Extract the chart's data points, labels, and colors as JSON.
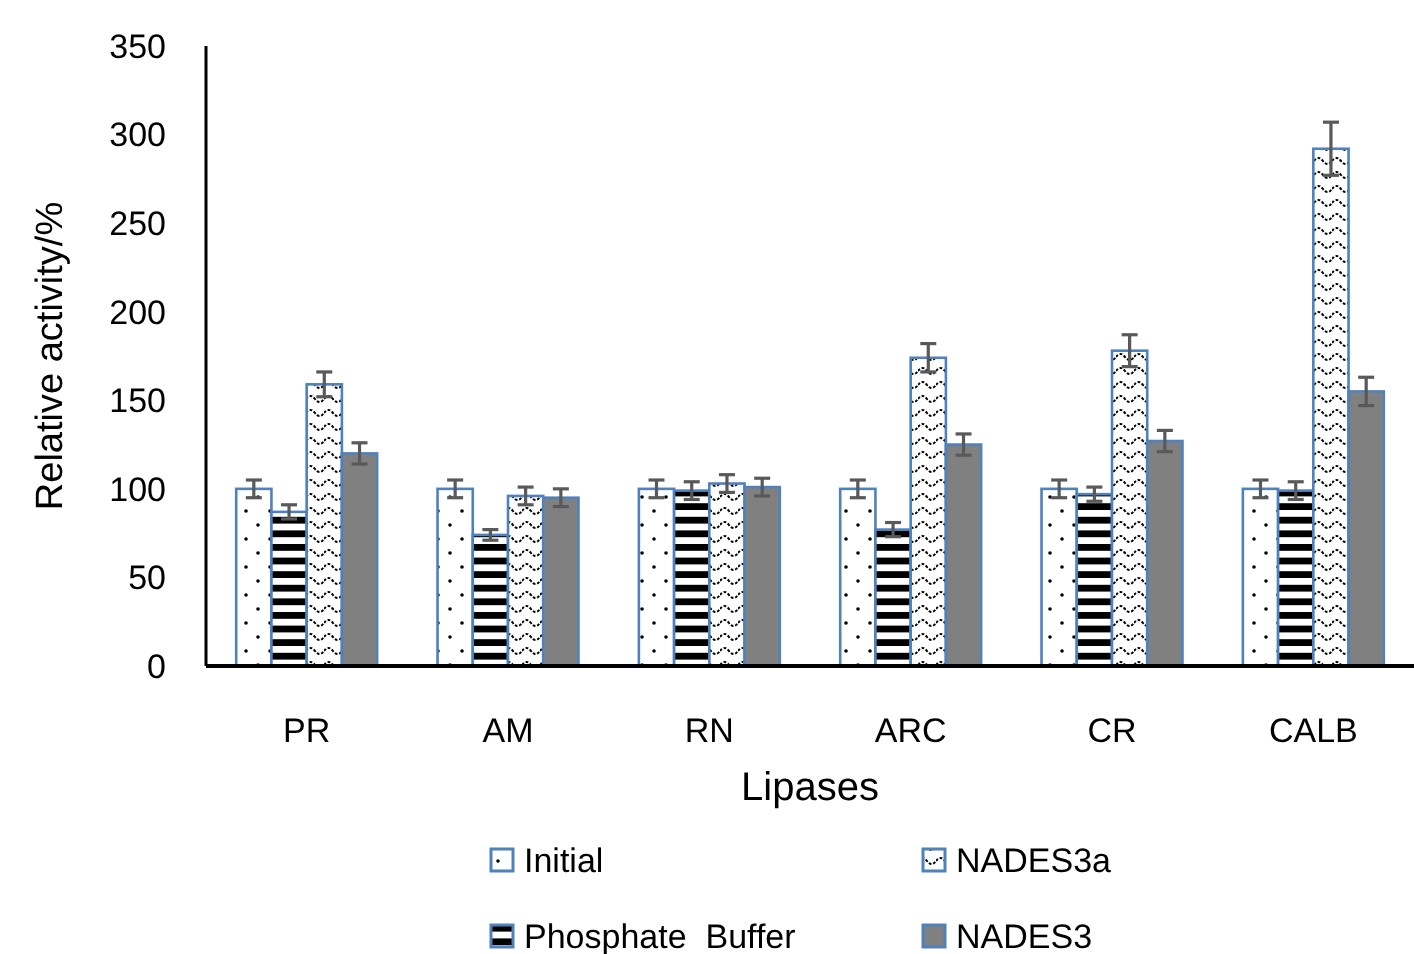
{
  "chart_data": {
    "type": "bar",
    "xlabel": "Lipases",
    "ylabel": "Relative activity/%",
    "categories": [
      "PR",
      "AM",
      "RN",
      "ARC",
      "CR",
      "CALB"
    ],
    "ylim": [
      0,
      350
    ],
    "yticks": [
      0,
      50,
      100,
      150,
      200,
      250,
      300,
      350
    ],
    "legend": "bottom",
    "series": [
      {
        "name": "Initial",
        "color": "#4f81bd",
        "values": [
          100,
          100,
          100,
          100,
          100,
          100
        ],
        "errors": [
          5,
          5,
          5,
          5,
          5,
          5
        ]
      },
      {
        "name": "Phosphate  Buffer",
        "color": "#4f81bd",
        "values": [
          87,
          74,
          99,
          77,
          97,
          99
        ],
        "errors": [
          4,
          3,
          5,
          4,
          4,
          5
        ]
      },
      {
        "name": "NADES3a",
        "color": "#4f81bd",
        "values": [
          159,
          96,
          103,
          174,
          178,
          292
        ],
        "errors": [
          7,
          5,
          5,
          8,
          9,
          15
        ]
      },
      {
        "name": "NADES3",
        "color": "#808080",
        "values": [
          120,
          95,
          101,
          125,
          127,
          155
        ],
        "errors": [
          6,
          5,
          5,
          6,
          6,
          8
        ]
      }
    ]
  }
}
